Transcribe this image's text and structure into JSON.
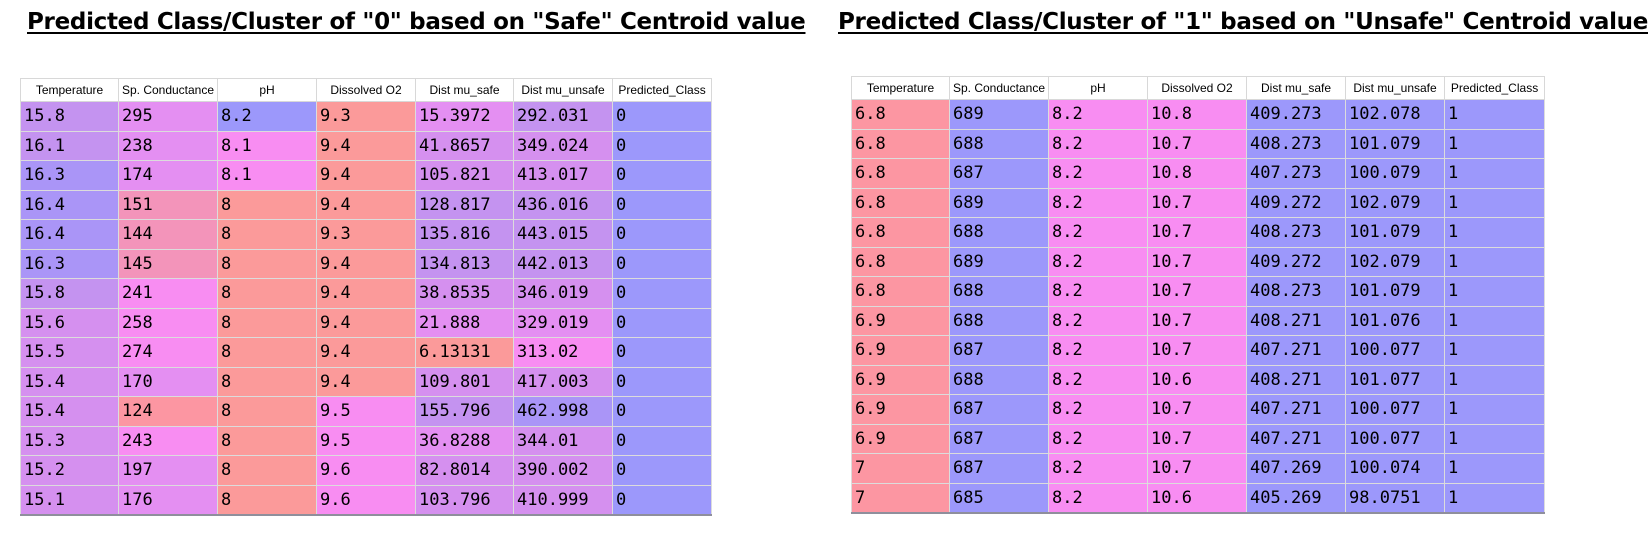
{
  "titles": {
    "left": "Predicted Class/Cluster of \"0\" based on \"Safe\" Centroid value",
    "right": "Predicted Class/Cluster of \"1\" based on \"Unsafe\" Centroid value"
  },
  "columns": [
    "Temperature",
    "Sp. Conductance",
    "pH",
    "Dissolved O2",
    "Dist mu_safe",
    "Dist mu_unsafe",
    "Predicted_Class"
  ],
  "colors": {
    "blue": "#9c98fb",
    "pink": "#f88df2",
    "red": "#fc96a2",
    "purple": "#c493f0"
  },
  "safe_rows": [
    [
      "15.8",
      "295",
      "8.2",
      "9.3",
      "15.3972",
      "292.031",
      "0"
    ],
    [
      "16.1",
      "238",
      "8.1",
      "9.4",
      "41.8657",
      "349.024",
      "0"
    ],
    [
      "16.3",
      "174",
      "8.1",
      "9.4",
      "105.821",
      "413.017",
      "0"
    ],
    [
      "16.4",
      "151",
      "8",
      "9.4",
      "128.817",
      "436.016",
      "0"
    ],
    [
      "16.4",
      "144",
      "8",
      "9.3",
      "135.816",
      "443.015",
      "0"
    ],
    [
      "16.3",
      "145",
      "8",
      "9.4",
      "134.813",
      "442.013",
      "0"
    ],
    [
      "15.8",
      "241",
      "8",
      "9.4",
      "38.8535",
      "346.019",
      "0"
    ],
    [
      "15.6",
      "258",
      "8",
      "9.4",
      "21.888",
      "329.019",
      "0"
    ],
    [
      "15.5",
      "274",
      "8",
      "9.4",
      "6.13131",
      "313.02",
      "0"
    ],
    [
      "15.4",
      "170",
      "8",
      "9.4",
      "109.801",
      "417.003",
      "0"
    ],
    [
      "15.4",
      "124",
      "8",
      "9.5",
      "155.796",
      "462.998",
      "0"
    ],
    [
      "15.3",
      "243",
      "8",
      "9.5",
      "36.8288",
      "344.01",
      "0"
    ],
    [
      "15.2",
      "197",
      "8",
      "9.6",
      "82.8014",
      "390.002",
      "0"
    ],
    [
      "15.1",
      "176",
      "8",
      "9.6",
      "103.796",
      "410.999",
      "0"
    ]
  ],
  "safe_colors": [
    [
      "purple",
      "pinkp",
      "blue",
      "salmon",
      "pinkp",
      "purple",
      "blue"
    ],
    [
      "purple",
      "pinkp",
      "pink",
      "salmon",
      "lav",
      "lav",
      "blue"
    ],
    [
      "bluep",
      "pinkp",
      "pink",
      "salmon",
      "lav",
      "lav",
      "blue"
    ],
    [
      "bluep",
      "redp",
      "salmon",
      "salmon",
      "purple",
      "purple",
      "blue"
    ],
    [
      "bluep",
      "redp",
      "salmon",
      "salmon",
      "purple",
      "purple",
      "blue"
    ],
    [
      "bluep",
      "redp",
      "salmon",
      "salmon",
      "purple",
      "purple",
      "blue"
    ],
    [
      "purple",
      "pink",
      "salmon",
      "salmon",
      "lav",
      "lav",
      "blue"
    ],
    [
      "lav",
      "pink",
      "salmon",
      "salmon",
      "pinkp",
      "pinkp",
      "blue"
    ],
    [
      "lav",
      "pink",
      "salmon",
      "salmon",
      "salmon",
      "pink",
      "blue"
    ],
    [
      "lav",
      "pinkp",
      "salmon",
      "salmon",
      "lav",
      "lav",
      "blue"
    ],
    [
      "lav",
      "red",
      "salmon",
      "pink",
      "purple",
      "bluep",
      "blue"
    ],
    [
      "lav",
      "pink",
      "salmon",
      "pink",
      "pinkp",
      "lav",
      "blue"
    ],
    [
      "lav",
      "pinkp",
      "salmon",
      "pink",
      "lav",
      "lav",
      "blue"
    ],
    [
      "lav",
      "pinkp",
      "salmon",
      "pink",
      "lav",
      "lav",
      "blue"
    ]
  ],
  "unsafe_rows": [
    [
      "6.8",
      "689",
      "8.2",
      "10.8",
      "409.273",
      "102.078",
      "1"
    ],
    [
      "6.8",
      "688",
      "8.2",
      "10.7",
      "408.273",
      "101.079",
      "1"
    ],
    [
      "6.8",
      "687",
      "8.2",
      "10.8",
      "407.273",
      "100.079",
      "1"
    ],
    [
      "6.8",
      "689",
      "8.2",
      "10.7",
      "409.272",
      "102.079",
      "1"
    ],
    [
      "6.8",
      "688",
      "8.2",
      "10.7",
      "408.273",
      "101.079",
      "1"
    ],
    [
      "6.8",
      "689",
      "8.2",
      "10.7",
      "409.272",
      "102.079",
      "1"
    ],
    [
      "6.8",
      "688",
      "8.2",
      "10.7",
      "408.273",
      "101.079",
      "1"
    ],
    [
      "6.9",
      "688",
      "8.2",
      "10.7",
      "408.271",
      "101.076",
      "1"
    ],
    [
      "6.9",
      "687",
      "8.2",
      "10.7",
      "407.271",
      "100.077",
      "1"
    ],
    [
      "6.9",
      "688",
      "8.2",
      "10.6",
      "408.271",
      "101.077",
      "1"
    ],
    [
      "6.9",
      "687",
      "8.2",
      "10.7",
      "407.271",
      "100.077",
      "1"
    ],
    [
      "6.9",
      "687",
      "8.2",
      "10.7",
      "407.271",
      "100.077",
      "1"
    ],
    [
      "7",
      "687",
      "8.2",
      "10.7",
      "407.269",
      "100.074",
      "1"
    ],
    [
      "7",
      "685",
      "8.2",
      "10.6",
      "405.269",
      "98.0751",
      "1"
    ]
  ],
  "unsafe_color_row": [
    "red",
    "blue",
    "pink",
    "pink",
    "blue",
    "blue",
    "blue"
  ]
}
